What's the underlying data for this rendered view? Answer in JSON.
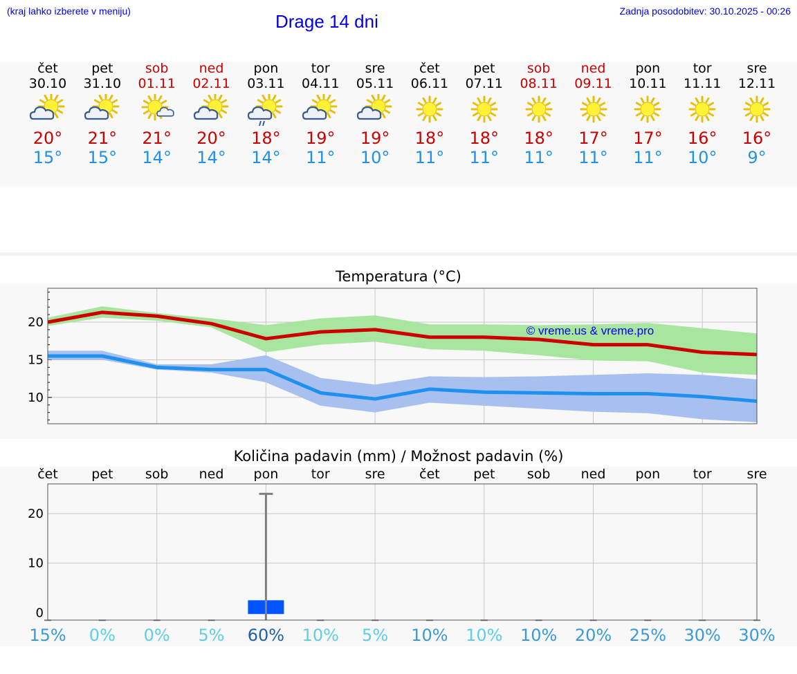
{
  "header": {
    "hint": "(kraj lahko izberete v meniju)",
    "title": "Drage 14 dni",
    "updated": "Zadnja posodobitev: 30.10.2025 - 00:26"
  },
  "colors": {
    "link": "#0000ee",
    "max": "#cc0000",
    "min": "#2090ee",
    "max_band": "#a8e6a0",
    "min_band": "#a8c0f0",
    "precip_bar": "#0055ff"
  },
  "days": [
    {
      "weekday": "čet",
      "date": "30.10",
      "icon": "sun-cloud-icon",
      "max": "20°",
      "min": "15°",
      "weekend": false
    },
    {
      "weekday": "pet",
      "date": "31.10",
      "icon": "sun-cloud-icon",
      "max": "21°",
      "min": "15°",
      "weekend": false
    },
    {
      "weekday": "sob",
      "date": "01.11",
      "icon": "sun-small-cloud-icon",
      "max": "21°",
      "min": "14°",
      "weekend": true
    },
    {
      "weekday": "ned",
      "date": "02.11",
      "icon": "sun-cloud-icon",
      "max": "20°",
      "min": "14°",
      "weekend": true
    },
    {
      "weekday": "pon",
      "date": "03.11",
      "icon": "sun-cloud-rain-icon",
      "max": "18°",
      "min": "14°",
      "weekend": false
    },
    {
      "weekday": "tor",
      "date": "04.11",
      "icon": "sun-cloud-icon",
      "max": "19°",
      "min": "11°",
      "weekend": false
    },
    {
      "weekday": "sre",
      "date": "05.11",
      "icon": "sun-cloud-icon",
      "max": "19°",
      "min": "10°",
      "weekend": false
    },
    {
      "weekday": "čet",
      "date": "06.11",
      "icon": "sun-icon",
      "max": "18°",
      "min": "11°",
      "weekend": false
    },
    {
      "weekday": "pet",
      "date": "07.11",
      "icon": "sun-icon",
      "max": "18°",
      "min": "11°",
      "weekend": false
    },
    {
      "weekday": "sob",
      "date": "08.11",
      "icon": "sun-icon",
      "max": "18°",
      "min": "11°",
      "weekend": true
    },
    {
      "weekday": "ned",
      "date": "09.11",
      "icon": "sun-icon",
      "max": "17°",
      "min": "11°",
      "weekend": true
    },
    {
      "weekday": "pon",
      "date": "10.11",
      "icon": "sun-icon",
      "max": "17°",
      "min": "11°",
      "weekend": false
    },
    {
      "weekday": "tor",
      "date": "11.11",
      "icon": "sun-icon",
      "max": "16°",
      "min": "10°",
      "weekend": false
    },
    {
      "weekday": "sre",
      "date": "12.11",
      "icon": "sun-icon",
      "max": "16°",
      "min": "9°",
      "weekend": false
    }
  ],
  "chart_data": [
    {
      "type": "line",
      "title": "Temperatura (°C)",
      "watermark": "© vreme.us & vreme.pro",
      "ylim": [
        6.5,
        24.5
      ],
      "yticks": [
        10,
        15,
        20
      ],
      "grid": true,
      "x": [
        0,
        1,
        2,
        3,
        4,
        5,
        6,
        7,
        8,
        9,
        10,
        11,
        12,
        13
      ],
      "series": [
        {
          "name": "max",
          "values": [
            20.0,
            21.3,
            20.8,
            19.8,
            17.8,
            18.7,
            19.0,
            18.0,
            18.0,
            17.7,
            17.0,
            17.0,
            16.0,
            15.7
          ],
          "band_low": [
            19.5,
            20.6,
            20.2,
            19.3,
            16.0,
            17.0,
            17.4,
            16.4,
            16.2,
            15.6,
            14.9,
            14.8,
            13.3,
            13.0
          ],
          "band_high": [
            20.6,
            22.1,
            21.2,
            20.5,
            19.6,
            20.5,
            20.9,
            19.7,
            19.7,
            19.6,
            19.7,
            19.9,
            19.2,
            18.5
          ]
        },
        {
          "name": "min",
          "values": [
            15.5,
            15.5,
            14.0,
            13.7,
            13.7,
            10.6,
            9.8,
            11.1,
            10.7,
            10.6,
            10.5,
            10.5,
            10.1,
            9.5
          ],
          "band_low": [
            15.0,
            15.0,
            13.7,
            13.3,
            12.0,
            8.9,
            8.0,
            9.3,
            8.9,
            8.5,
            8.1,
            7.9,
            7.1,
            6.7
          ],
          "band_high": [
            16.2,
            16.2,
            14.4,
            14.4,
            15.6,
            12.6,
            11.7,
            12.8,
            12.7,
            12.8,
            13.0,
            13.2,
            13.0,
            12.4
          ]
        }
      ]
    },
    {
      "type": "bar",
      "title": "Količina padavin (mm) / Možnost padavin (%)",
      "categories": [
        "čet",
        "pet",
        "sob",
        "ned",
        "pon",
        "tor",
        "sre",
        "čet",
        "pet",
        "sob",
        "ned",
        "pon",
        "tor",
        "sre"
      ],
      "ylim": [
        -1.5,
        26
      ],
      "yticks": [
        0,
        10,
        20
      ],
      "grid": true,
      "values": [
        0,
        0,
        0,
        0,
        2.5,
        0,
        0,
        0,
        0,
        0,
        0,
        0,
        0,
        0
      ],
      "error_max": [
        0,
        0,
        0,
        0,
        24,
        0,
        0,
        0,
        0,
        0,
        0,
        0,
        0,
        0
      ],
      "probability": [
        "15%",
        "0%",
        "0%",
        "5%",
        "60%",
        "10%",
        "5%",
        "10%",
        "10%",
        "10%",
        "20%",
        "25%",
        "30%",
        "30%"
      ],
      "probability_colors": [
        "#3a9ad9",
        "#5ccfe6",
        "#5ccfe6",
        "#5ccfe6",
        "#1f5faa",
        "#5ccfe6",
        "#5ccfe6",
        "#3a9ad9",
        "#5ccfe6",
        "#3a9ad9",
        "#3a9ad9",
        "#3a9ad9",
        "#3a9ad9",
        "#3a9ad9"
      ]
    }
  ]
}
